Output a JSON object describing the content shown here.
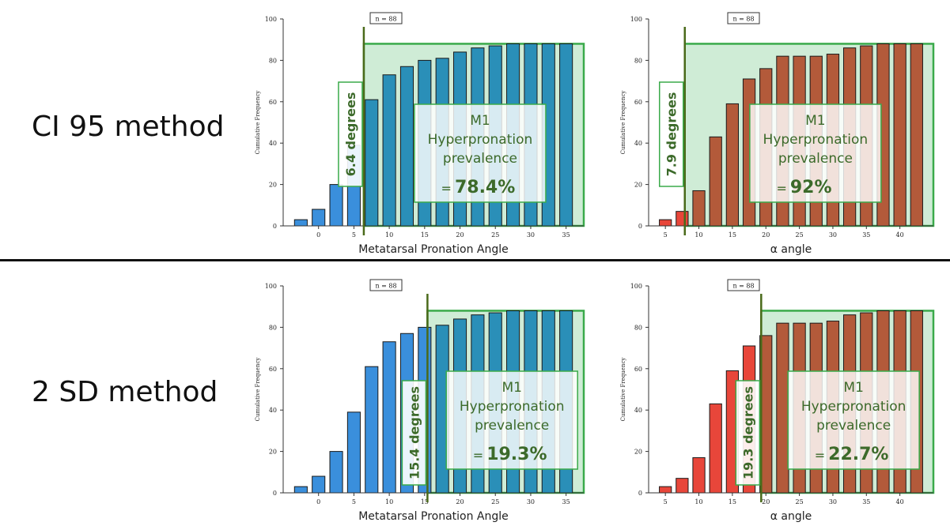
{
  "row_labels": [
    "CI 95 method",
    "2 SD method"
  ],
  "colors": {
    "blue_light": "#3a8fdc",
    "blue_dark": "#2a8fb8",
    "red_light": "#e8463a",
    "red_dark": "#b35a3a",
    "green": "#3aaa4a",
    "green_fill": "#bfe6c8",
    "threshold_text": "#3c6a2a"
  },
  "chart_data": [
    {
      "type": "bar",
      "ylabel": "Cumulative Frequency",
      "xlabel": "Metatarsal Pronation Angle",
      "n_label": "n = 88",
      "x": [
        -2.5,
        0,
        2.5,
        5,
        7.5,
        10,
        12.5,
        15,
        17.5,
        20,
        22.5,
        25,
        27.5,
        30,
        32.5,
        35
      ],
      "values": [
        3,
        8,
        20,
        39,
        61,
        73,
        77,
        80,
        81,
        84,
        86,
        87,
        88,
        88,
        88,
        88
      ],
      "xticks": [
        0,
        5,
        10,
        15,
        20,
        25,
        30,
        35
      ],
      "yticks": [
        0,
        20,
        40,
        60,
        80,
        100
      ],
      "ylim": [
        0,
        100
      ],
      "threshold": 6.4,
      "threshold_label": "6.4 degrees",
      "prevalence_lines": [
        "M1",
        "Hyperpronation",
        "prevalence"
      ],
      "prevalence_prefix": "=",
      "prevalence_value": "78.4%",
      "palette": "blue"
    },
    {
      "type": "bar",
      "ylabel": "Cumulative Frequency",
      "xlabel": "α angle",
      "n_label": "n = 88",
      "x": [
        5,
        7.5,
        10,
        12.5,
        15,
        17.5,
        20,
        22.5,
        25,
        27.5,
        30,
        32.5,
        35,
        37.5,
        40,
        42.5
      ],
      "values": [
        3,
        7,
        17,
        43,
        59,
        71,
        76,
        82,
        82,
        82,
        83,
        86,
        87,
        88,
        88,
        88
      ],
      "xticks": [
        5,
        10,
        15,
        20,
        25,
        30,
        35,
        40
      ],
      "yticks": [
        0,
        20,
        40,
        60,
        80,
        100
      ],
      "ylim": [
        0,
        100
      ],
      "threshold": 7.9,
      "threshold_label": "7.9 degrees",
      "prevalence_lines": [
        "M1",
        "Hyperpronation",
        "prevalence"
      ],
      "prevalence_prefix": "=",
      "prevalence_value": "92%",
      "palette": "red"
    },
    {
      "type": "bar",
      "ylabel": "Cumulative Frequency",
      "xlabel": "Metatarsal Pronation Angle",
      "n_label": "n = 88",
      "x": [
        -2.5,
        0,
        2.5,
        5,
        7.5,
        10,
        12.5,
        15,
        17.5,
        20,
        22.5,
        25,
        27.5,
        30,
        32.5,
        35
      ],
      "values": [
        3,
        8,
        20,
        39,
        61,
        73,
        77,
        80,
        81,
        84,
        86,
        87,
        88,
        88,
        88,
        88
      ],
      "xticks": [
        0,
        5,
        10,
        15,
        20,
        25,
        30,
        35
      ],
      "yticks": [
        0,
        20,
        40,
        60,
        80,
        100
      ],
      "ylim": [
        0,
        100
      ],
      "threshold": 15.4,
      "threshold_label": "15.4 degrees",
      "prevalence_lines": [
        "M1",
        "Hyperpronation",
        "prevalence"
      ],
      "prevalence_prefix": "=",
      "prevalence_value": "19.3%",
      "palette": "blue"
    },
    {
      "type": "bar",
      "ylabel": "Cumulative Frequency",
      "xlabel": "α angle",
      "n_label": "n = 88",
      "x": [
        5,
        7.5,
        10,
        12.5,
        15,
        17.5,
        20,
        22.5,
        25,
        27.5,
        30,
        32.5,
        35,
        37.5,
        40,
        42.5
      ],
      "values": [
        3,
        7,
        17,
        43,
        59,
        71,
        76,
        82,
        82,
        82,
        83,
        86,
        87,
        88,
        88,
        88
      ],
      "xticks": [
        5,
        10,
        15,
        20,
        25,
        30,
        35,
        40
      ],
      "yticks": [
        0,
        20,
        40,
        60,
        80,
        100
      ],
      "ylim": [
        0,
        100
      ],
      "threshold": 19.3,
      "threshold_label": "19.3 degrees",
      "prevalence_lines": [
        "M1",
        "Hyperpronation",
        "prevalence"
      ],
      "prevalence_prefix": "=",
      "prevalence_value": "22.7%",
      "palette": "red"
    }
  ]
}
